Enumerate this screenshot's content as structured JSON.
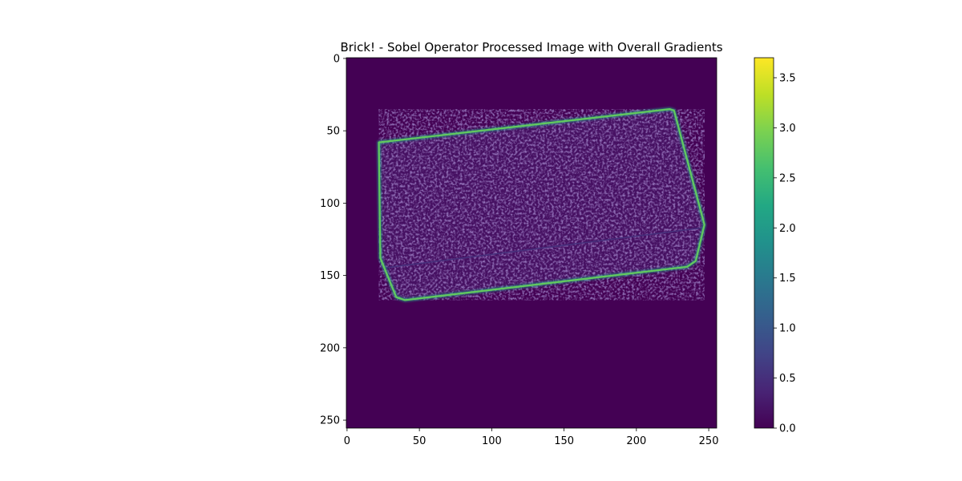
{
  "chart_data": {
    "type": "heatmap",
    "title": "Brick! - Sobel Operator Processed Image with Overall Gradients",
    "xlabel": "",
    "ylabel": "",
    "image_size": [
      256,
      256
    ],
    "xlim": [
      0,
      255
    ],
    "ylim": [
      255,
      0
    ],
    "x_ticks": [
      0,
      50,
      100,
      150,
      200,
      250
    ],
    "y_ticks": [
      0,
      50,
      100,
      150,
      200,
      250
    ],
    "colormap": "viridis",
    "colorbar": {
      "range": [
        0.0,
        3.7
      ],
      "ticks": [
        "0.0",
        "0.5",
        "1.0",
        "1.5",
        "2.0",
        "2.5",
        "3.0",
        "3.5"
      ]
    },
    "features": {
      "outer_edge": {
        "magnitude": 2.8,
        "points": [
          [
            22,
            58
          ],
          [
            223,
            35
          ],
          [
            226,
            36
          ],
          [
            247,
            115
          ],
          [
            241,
            140
          ],
          [
            235,
            144
          ],
          [
            40,
            167
          ],
          [
            34,
            165
          ],
          [
            23,
            138
          ]
        ]
      },
      "inner_edge": {
        "magnitude": 0.5,
        "points": [
          [
            24,
            145
          ],
          [
            246,
            117
          ]
        ]
      },
      "interior_texture": {
        "magnitude": 0.35
      },
      "background": {
        "magnitude": 0.0
      }
    },
    "grid": false,
    "legend": "none"
  }
}
